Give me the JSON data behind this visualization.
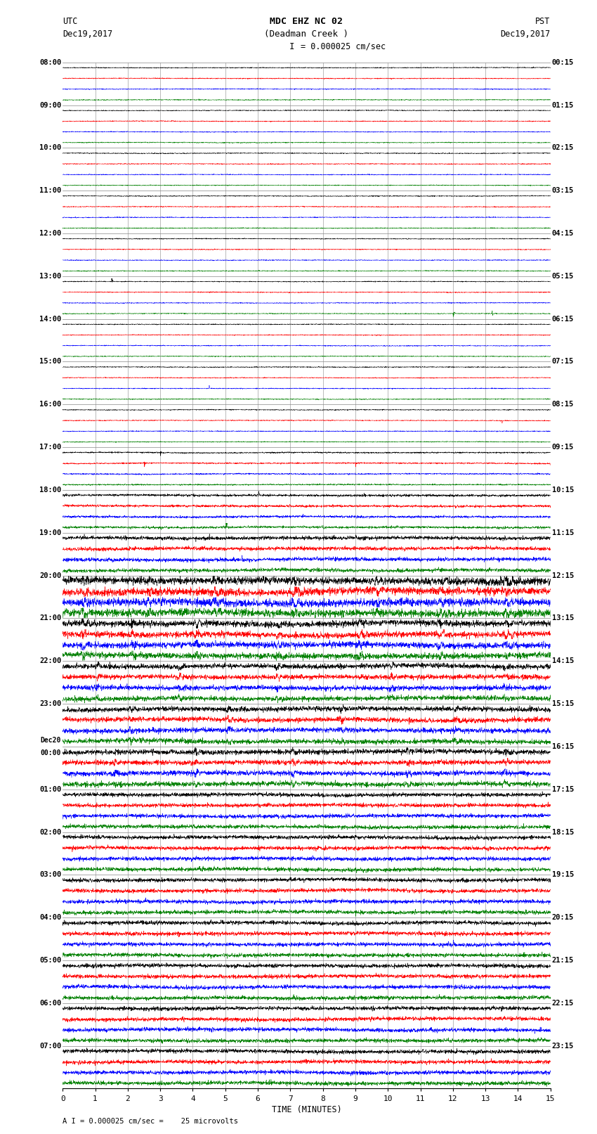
{
  "title_line1": "MDC EHZ NC 02",
  "title_line2": "(Deadman Creek )",
  "scale_label": "= 0.000025 cm/sec",
  "scale_bar": "I",
  "footer_label": "A I = 0.000025 cm/sec =    25 microvolts",
  "xlabel": "TIME (MINUTES)",
  "utc_label": "UTC",
  "utc_date": "Dec19,2017",
  "pst_label": "PST",
  "pst_date": "Dec19,2017",
  "left_times": [
    "08:00",
    "09:00",
    "10:00",
    "11:00",
    "12:00",
    "13:00",
    "14:00",
    "15:00",
    "16:00",
    "17:00",
    "18:00",
    "19:00",
    "20:00",
    "21:00",
    "22:00",
    "23:00",
    "Dec20\n00:00",
    "01:00",
    "02:00",
    "03:00",
    "04:00",
    "05:00",
    "06:00",
    "07:00"
  ],
  "right_times": [
    "00:15",
    "01:15",
    "02:15",
    "03:15",
    "04:15",
    "05:15",
    "06:15",
    "07:15",
    "08:15",
    "09:15",
    "10:15",
    "11:15",
    "12:15",
    "13:15",
    "14:15",
    "15:15",
    "16:15",
    "17:15",
    "18:15",
    "19:15",
    "20:15",
    "21:15",
    "22:15",
    "23:15"
  ],
  "colors": [
    "black",
    "red",
    "blue",
    "green"
  ],
  "n_rows": 24,
  "traces_per_row": 4,
  "x_min": 0,
  "x_max": 15,
  "x_ticks": [
    0,
    1,
    2,
    3,
    4,
    5,
    6,
    7,
    8,
    9,
    10,
    11,
    12,
    13,
    14,
    15
  ],
  "bg_color": "white",
  "seed": 42,
  "noise_quiet": 0.025,
  "noise_active": 0.35,
  "trace_lw": 0.35
}
